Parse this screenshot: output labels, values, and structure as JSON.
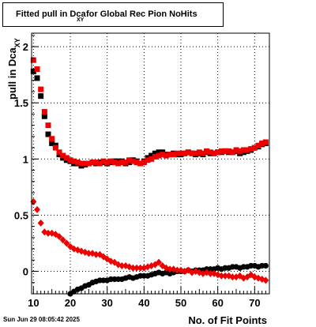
{
  "title_box": {
    "main": "Fitted pull in Dca",
    "sub": "XY",
    "rest": "for Global Rec Pion NoHits"
  },
  "footer": {
    "timestamp": "Sun Jun 29 08:05:42 2025"
  },
  "colors": {
    "black_series": "#000000",
    "red_series": "#ee0000",
    "axes": "#000000",
    "grid": "#000000"
  },
  "chart_data": {
    "type": "scatter",
    "xlabel": "No. of Fit Points",
    "ylabel": "pull in Dca",
    "ylabel_sub": "XY",
    "xlim": [
      9.5,
      74
    ],
    "ylim": [
      -0.2,
      2.12
    ],
    "grid": true,
    "x_ticks": [
      10,
      20,
      30,
      40,
      50,
      60,
      70
    ],
    "y_ticks": [
      0,
      0.5,
      1,
      1.5,
      2
    ],
    "y_tick_labels": [
      "0",
      "0.5",
      "1",
      "1.5",
      "2"
    ],
    "series": [
      {
        "marker": "square",
        "color": "#000000",
        "x": [
          10,
          11,
          12,
          13,
          14,
          15,
          16,
          17,
          18,
          19,
          20,
          21,
          22,
          23,
          24,
          25,
          26,
          27,
          28,
          29,
          30,
          31,
          32,
          33,
          34,
          35,
          36,
          37,
          38,
          39,
          40,
          41,
          42,
          43,
          44,
          45,
          46,
          47,
          48,
          49,
          50,
          51,
          52,
          53,
          54,
          55,
          56,
          57,
          58,
          59,
          60,
          61,
          62,
          63,
          64,
          65,
          66,
          67,
          68,
          69,
          70,
          71,
          72,
          73
        ],
        "y": [
          1.78,
          1.72,
          1.56,
          1.38,
          1.22,
          1.14,
          1.12,
          1.04,
          1.01,
          0.99,
          0.98,
          0.96,
          0.96,
          0.94,
          0.95,
          0.96,
          0.97,
          0.96,
          0.97,
          0.97,
          0.96,
          0.97,
          0.98,
          0.98,
          0.98,
          0.96,
          0.97,
          0.99,
          0.98,
          0.96,
          0.98,
          1.01,
          1.03,
          1.05,
          1.06,
          1.06,
          1.04,
          1.04,
          1.05,
          1.04,
          1.04,
          1.05,
          1.06,
          1.05,
          1.04,
          1.05,
          1.04,
          1.06,
          1.05,
          1.05,
          1.06,
          1.06,
          1.07,
          1.06,
          1.06,
          1.07,
          1.05,
          1.06,
          1.07,
          1.08,
          1.1,
          1.11,
          1.13,
          1.14
        ]
      },
      {
        "marker": "square",
        "color": "#ee0000",
        "x": [
          10,
          11,
          12,
          13,
          14,
          15,
          16,
          17,
          18,
          19,
          20,
          21,
          22,
          23,
          24,
          25,
          26,
          27,
          28,
          29,
          30,
          31,
          32,
          33,
          34,
          35,
          36,
          37,
          38,
          39,
          40,
          41,
          42,
          43,
          44,
          45,
          46,
          47,
          48,
          49,
          50,
          51,
          52,
          53,
          54,
          55,
          56,
          57,
          58,
          59,
          60,
          61,
          62,
          63,
          64,
          65,
          66,
          67,
          68,
          69,
          70,
          71,
          72,
          73
        ],
        "y": [
          1.88,
          1.8,
          1.62,
          1.42,
          1.3,
          1.18,
          1.1,
          1.06,
          1.03,
          1.01,
          0.99,
          0.98,
          0.97,
          0.96,
          0.96,
          0.96,
          0.97,
          0.97,
          0.96,
          0.98,
          0.97,
          0.98,
          0.97,
          0.96,
          0.97,
          0.97,
          0.99,
          0.98,
          0.97,
          0.96,
          0.97,
          0.99,
          1.0,
          1.02,
          1.03,
          1.04,
          1.03,
          1.04,
          1.04,
          1.05,
          1.05,
          1.05,
          1.06,
          1.05,
          1.05,
          1.06,
          1.05,
          1.07,
          1.06,
          1.05,
          1.06,
          1.07,
          1.07,
          1.07,
          1.06,
          1.08,
          1.07,
          1.08,
          1.08,
          1.09,
          1.1,
          1.12,
          1.14,
          1.15
        ]
      },
      {
        "marker": "circle",
        "color": "#000000",
        "x": [
          20,
          21,
          22,
          23,
          24,
          25,
          26,
          27,
          28,
          29,
          30,
          31,
          32,
          33,
          34,
          35,
          36,
          37,
          38,
          39,
          40,
          41,
          42,
          43,
          44,
          45,
          46,
          47,
          48,
          49,
          50,
          51,
          52,
          53,
          54,
          55,
          56,
          57,
          58,
          59,
          60,
          61,
          62,
          63,
          64,
          65,
          66,
          67,
          68,
          69,
          70,
          71,
          72,
          73
        ],
        "y": [
          -0.2,
          -0.18,
          -0.16,
          -0.15,
          -0.13,
          -0.12,
          -0.1,
          -0.09,
          -0.08,
          -0.08,
          -0.08,
          -0.07,
          -0.07,
          -0.07,
          -0.07,
          -0.06,
          -0.05,
          -0.06,
          -0.05,
          -0.04,
          -0.04,
          -0.04,
          -0.03,
          -0.02,
          -0.01,
          -0.02,
          -0.01,
          -0.02,
          -0.01,
          0.0,
          0.0,
          0.0,
          0.01,
          0.0,
          0.01,
          0.01,
          0.01,
          0.02,
          0.02,
          0.02,
          0.03,
          0.02,
          0.03,
          0.03,
          0.04,
          0.04,
          0.03,
          0.04,
          0.04,
          0.05,
          0.05,
          0.04,
          0.05,
          0.05
        ]
      },
      {
        "marker": "diamond",
        "color": "#ee0000",
        "x": [
          10,
          11,
          12,
          13,
          14,
          15,
          16,
          17,
          18,
          19,
          20,
          21,
          22,
          23,
          24,
          25,
          26,
          27,
          28,
          29,
          30,
          31,
          32,
          33,
          34,
          35,
          36,
          37,
          38,
          39,
          40,
          41,
          42,
          43,
          44,
          45,
          46,
          47,
          48,
          49,
          50,
          51,
          52,
          53,
          54,
          55,
          56,
          57,
          58,
          59,
          60,
          61,
          62,
          63,
          64,
          65,
          66,
          67,
          68,
          69,
          70,
          71,
          72,
          73
        ],
        "y": [
          0.62,
          0.55,
          0.43,
          0.35,
          0.34,
          0.34,
          0.33,
          0.31,
          0.28,
          0.25,
          0.22,
          0.2,
          0.19,
          0.18,
          0.17,
          0.16,
          0.16,
          0.15,
          0.15,
          0.13,
          0.11,
          0.09,
          0.08,
          0.06,
          0.05,
          0.05,
          0.04,
          0.03,
          0.03,
          0.03,
          0.03,
          0.04,
          0.05,
          0.06,
          0.08,
          0.05,
          0.03,
          0.02,
          0.02,
          0.01,
          0.01,
          0.0,
          0.01,
          -0.01,
          0.0,
          -0.01,
          -0.02,
          -0.01,
          -0.02,
          -0.02,
          -0.03,
          -0.04,
          -0.04,
          -0.04,
          -0.05,
          -0.05,
          -0.04,
          -0.06,
          -0.05,
          -0.03,
          -0.05,
          -0.06,
          -0.07,
          -0.08
        ]
      }
    ]
  }
}
